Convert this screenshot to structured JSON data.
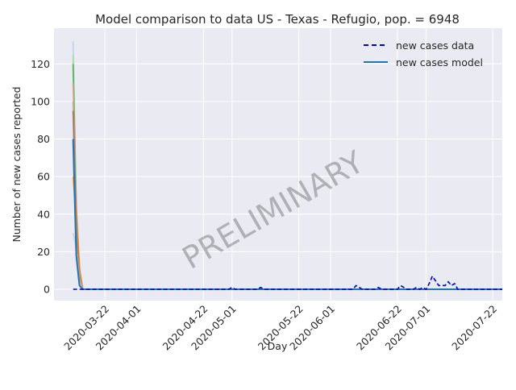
{
  "chart_data": {
    "type": "line",
    "title": "Model comparison to data US - Texas - Refugio, pop. = 6948",
    "xlabel": "Day",
    "ylabel": "Number of new cases reported",
    "watermark": "PRELIMINARY",
    "x_start": "2020-03-06",
    "x_end": "2020-07-25",
    "ylim": [
      -6,
      139
    ],
    "yticks": [
      0,
      20,
      40,
      60,
      80,
      100,
      120
    ],
    "xticks": [
      "2020-03-22",
      "2020-04-01",
      "2020-04-22",
      "2020-05-01",
      "2020-05-22",
      "2020-06-01",
      "2020-06-22",
      "2020-07-01",
      "2020-07-22"
    ],
    "grid": true,
    "legend_position": "top-right",
    "legend": [
      {
        "label": "new cases data",
        "style": "dashed",
        "color": "#0000cc"
      },
      {
        "label": "new cases model",
        "style": "solid",
        "color": "#1f77b4"
      }
    ],
    "colors": {
      "background": "#eaeaf2",
      "grid": "#ffffff",
      "data": "#0000cc",
      "model": "#1f77b4",
      "ensemble": [
        "#aec7e8",
        "#98df8a",
        "#2ca02c",
        "#ff9896",
        "#c49c94",
        "#8c564b",
        "#ff7f0e"
      ]
    },
    "series": [
      {
        "name": "new cases data",
        "points": [
          [
            "2020-03-12",
            0
          ],
          [
            "2020-04-30",
            0
          ],
          [
            "2020-05-01",
            1
          ],
          [
            "2020-05-02",
            0
          ],
          [
            "2020-05-09",
            0
          ],
          [
            "2020-05-10",
            1
          ],
          [
            "2020-05-11",
            0
          ],
          [
            "2020-06-08",
            0
          ],
          [
            "2020-06-09",
            2
          ],
          [
            "2020-06-11",
            0
          ],
          [
            "2020-06-15",
            0
          ],
          [
            "2020-06-16",
            1
          ],
          [
            "2020-06-17",
            0
          ],
          [
            "2020-06-22",
            0
          ],
          [
            "2020-06-23",
            2
          ],
          [
            "2020-06-25",
            0
          ],
          [
            "2020-06-27",
            0
          ],
          [
            "2020-06-28",
            1
          ],
          [
            "2020-06-29",
            0
          ],
          [
            "2020-06-30",
            1
          ],
          [
            "2020-07-01",
            0
          ],
          [
            "2020-07-02",
            3
          ],
          [
            "2020-07-03",
            7
          ],
          [
            "2020-07-05",
            2
          ],
          [
            "2020-07-07",
            2
          ],
          [
            "2020-07-08",
            4
          ],
          [
            "2020-07-09",
            2
          ],
          [
            "2020-07-10",
            3
          ],
          [
            "2020-07-11",
            0
          ],
          [
            "2020-07-25",
            0
          ]
        ]
      },
      {
        "name": "new cases model",
        "points": [
          [
            "2020-03-12",
            80
          ],
          [
            "2020-03-13",
            18
          ],
          [
            "2020-03-14",
            2
          ],
          [
            "2020-03-15",
            0
          ],
          [
            "2020-07-25",
            0
          ]
        ]
      }
    ],
    "ensemble": [
      [
        [
          "2020-03-12",
          132
        ],
        [
          "2020-03-13",
          30
        ],
        [
          "2020-03-14",
          5
        ],
        [
          "2020-03-15",
          0
        ],
        [
          "2020-07-25",
          0
        ]
      ],
      [
        [
          "2020-03-12",
          125
        ],
        [
          "2020-03-13",
          45
        ],
        [
          "2020-03-14",
          10
        ],
        [
          "2020-03-15",
          0
        ],
        [
          "2020-07-25",
          0
        ]
      ],
      [
        [
          "2020-03-12",
          120
        ],
        [
          "2020-03-13",
          40
        ],
        [
          "2020-03-14",
          8
        ],
        [
          "2020-03-15",
          0
        ],
        [
          "2020-07-25",
          0
        ]
      ],
      [
        [
          "2020-03-12",
          110
        ],
        [
          "2020-03-13",
          35
        ],
        [
          "2020-03-14",
          6
        ],
        [
          "2020-03-15",
          0
        ],
        [
          "2020-07-25",
          0
        ]
      ],
      [
        [
          "2020-03-12",
          100
        ],
        [
          "2020-03-13",
          45
        ],
        [
          "2020-03-14",
          12
        ],
        [
          "2020-03-15",
          0
        ],
        [
          "2020-07-25",
          0
        ]
      ],
      [
        [
          "2020-03-12",
          95
        ],
        [
          "2020-03-13",
          32
        ],
        [
          "2020-03-14",
          8
        ],
        [
          "2020-03-15",
          0
        ],
        [
          "2020-07-25",
          0
        ]
      ],
      [
        [
          "2020-03-12",
          60
        ],
        [
          "2020-03-13",
          38
        ],
        [
          "2020-03-14",
          10
        ],
        [
          "2020-03-15",
          0
        ],
        [
          "2020-07-25",
          0
        ]
      ],
      [
        [
          "2020-03-12",
          30
        ],
        [
          "2020-03-13",
          22
        ],
        [
          "2020-03-14",
          5
        ],
        [
          "2020-03-15",
          0
        ],
        [
          "2020-07-25",
          0
        ]
      ]
    ]
  }
}
